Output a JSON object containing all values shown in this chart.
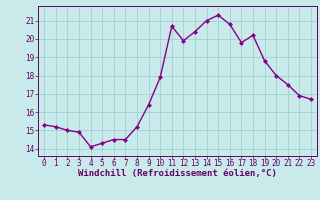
{
  "x": [
    0,
    1,
    2,
    3,
    4,
    5,
    6,
    7,
    8,
    9,
    10,
    11,
    12,
    13,
    14,
    15,
    16,
    17,
    18,
    19,
    20,
    21,
    22,
    23
  ],
  "y": [
    15.3,
    15.2,
    15.0,
    14.9,
    14.1,
    14.3,
    14.5,
    14.5,
    15.2,
    16.4,
    17.9,
    20.7,
    19.9,
    20.4,
    21.0,
    21.3,
    20.8,
    19.8,
    20.2,
    18.8,
    18.0,
    17.5,
    16.9,
    16.7
  ],
  "line_color": "#880088",
  "marker": "D",
  "marker_size": 2.0,
  "bg_color": "#c8eaea",
  "grid_color": "#99cccc",
  "xlabel": "Windchill (Refroidissement éolien,°C)",
  "xlabel_color": "#660066",
  "ylim": [
    13.6,
    21.8
  ],
  "yticks": [
    14,
    15,
    16,
    17,
    18,
    19,
    20,
    21
  ],
  "xtick_labels": [
    "0",
    "1",
    "2",
    "3",
    "4",
    "5",
    "6",
    "7",
    "8",
    "9",
    "10",
    "11",
    "12",
    "13",
    "14",
    "15",
    "16",
    "17",
    "18",
    "19",
    "20",
    "21",
    "22",
    "23"
  ],
  "tick_color": "#660066",
  "tick_fontsize": 5.5,
  "xlabel_fontsize": 6.5,
  "line_width": 1.0,
  "spine_color": "#660066"
}
